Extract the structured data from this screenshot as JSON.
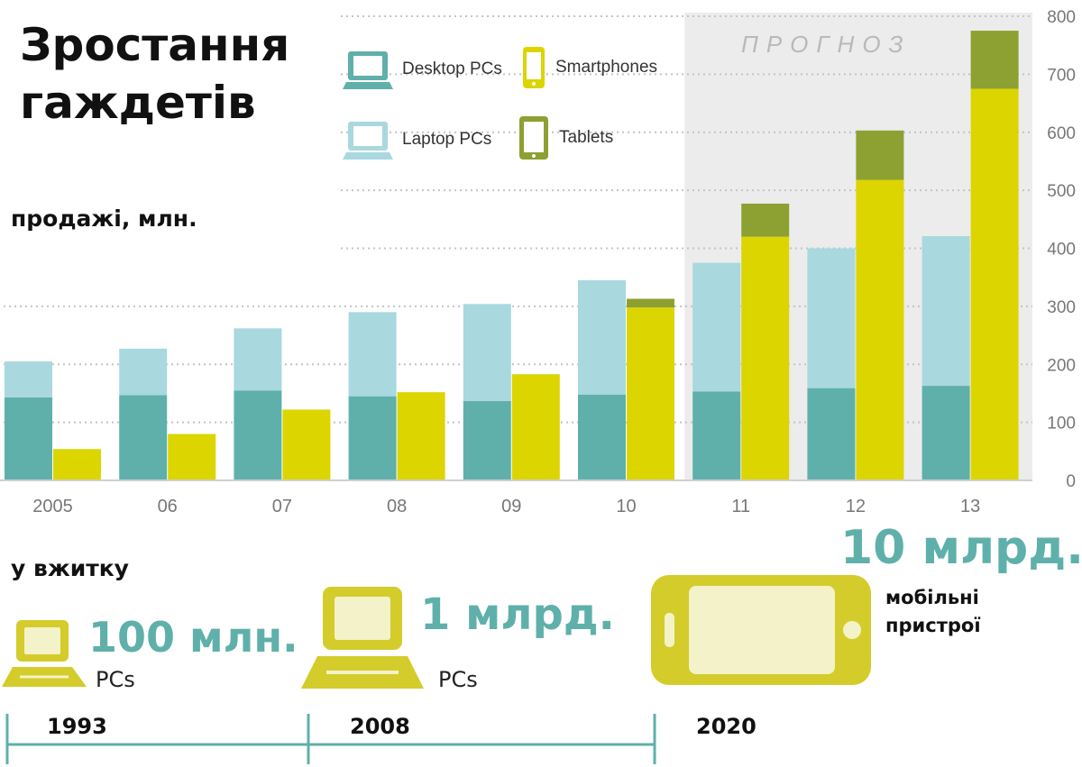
{
  "header": {
    "title_line1": "Зростання",
    "title_line2": "гаждетів",
    "subtitle": "продажі, млн."
  },
  "forecast_label": "ПРОГНОЗ",
  "chart_data": {
    "type": "bar",
    "title": "Зростання гаждетів",
    "ylabel": "продажі, млн.",
    "categories": [
      "2005",
      "06",
      "07",
      "08",
      "09",
      "10",
      "11",
      "12",
      "13"
    ],
    "forecast_from": "11",
    "ylim": [
      0,
      800
    ],
    "yticks": [
      0,
      100,
      200,
      300,
      400,
      500,
      600,
      700,
      800
    ],
    "y_axis_side": "right",
    "grid": true,
    "legend_position": "top-left",
    "stacks": [
      {
        "bar": "pcs",
        "series": [
          {
            "name": "Desktop PCs",
            "color": "#5fb0aa",
            "values": [
              143,
              147,
              155,
              145,
              137,
              148,
              153,
              159,
              163
            ]
          },
          {
            "name": "Laptop PCs",
            "color": "#a9d8df",
            "values": [
              62,
              80,
              107,
              145,
              167,
              197,
              222,
              241,
              258
            ]
          }
        ]
      },
      {
        "bar": "mobile",
        "series": [
          {
            "name": "Smartphones",
            "color": "#dcd500",
            "values": [
              54,
              80,
              122,
              152,
              183,
              298,
              420,
              518,
              675
            ]
          },
          {
            "name": "Tablets",
            "color": "#8da132",
            "values": [
              0,
              0,
              0,
              0,
              0,
              15,
              57,
              85,
              100
            ]
          }
        ]
      }
    ]
  },
  "legend": {
    "desktop": {
      "label": "Desktop PCs",
      "icon": "desktop-icon",
      "color": "#5fb0aa"
    },
    "smartphones": {
      "label": "Smartphones",
      "icon": "smartphone-icon",
      "color": "#dcd500"
    },
    "laptop": {
      "label": "Laptop PCs",
      "icon": "laptop-icon",
      "color": "#a9d8df"
    },
    "tablets": {
      "label": "Tablets",
      "icon": "tablet-icon",
      "color": "#8da132"
    }
  },
  "usage": {
    "label": "у вжитку",
    "milestones": [
      {
        "year": "1993",
        "amount": "100 млн.",
        "caption": "PCs",
        "icon": "laptop-icon"
      },
      {
        "year": "2008",
        "amount": "1 млрд.",
        "caption": "PCs",
        "icon": "laptop-icon"
      },
      {
        "year": "2020",
        "amount": "10 млрд.",
        "caption_line1": "мобільні",
        "caption_line2": "пристрої",
        "icon": "smartphone-icon"
      }
    ]
  },
  "colors": {
    "accent_teal": "#5fb0aa",
    "accent_yellow": "#d4cc2a",
    "forecast_bg": "#ececec"
  }
}
